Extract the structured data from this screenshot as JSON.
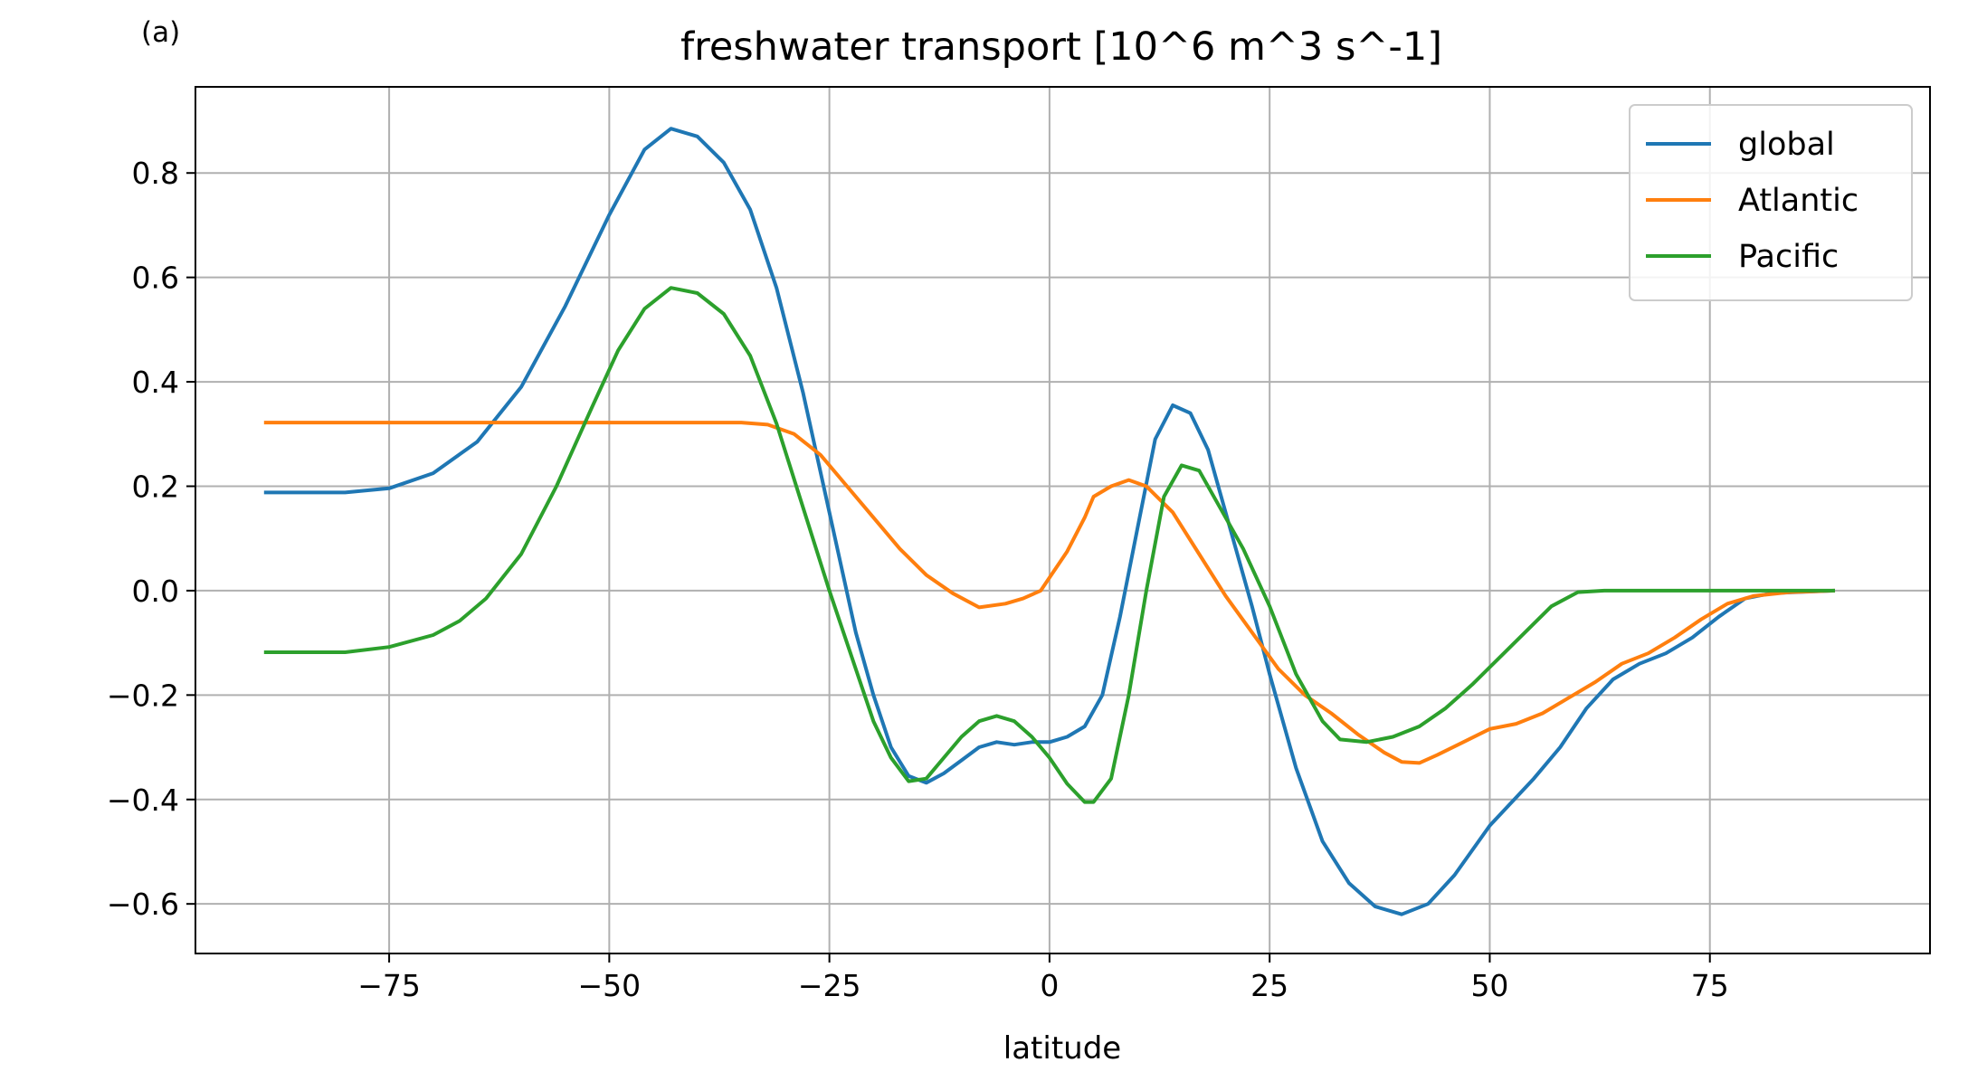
{
  "panel_label": "(a)",
  "chart_data": {
    "type": "line",
    "title": "freshwater transport [10^6 m^3 s^-1]",
    "xlabel": "latitude",
    "ylabel": "",
    "xlim": [
      -97,
      100
    ],
    "ylim": [
      -0.695,
      0.965
    ],
    "x_ticks": [
      -75,
      -50,
      -25,
      0,
      25,
      50,
      75
    ],
    "x_tick_labels": [
      "−75",
      "−50",
      "−25",
      "0",
      "25",
      "50",
      "75"
    ],
    "y_ticks": [
      -0.6,
      -0.4,
      -0.2,
      0.0,
      0.2,
      0.4,
      0.6,
      0.8
    ],
    "y_tick_labels": [
      "−0.6",
      "−0.4",
      "−0.2",
      "0.0",
      "0.2",
      "0.4",
      "0.6",
      "0.8"
    ],
    "grid": true,
    "legend_position": "top-right",
    "series": [
      {
        "name": "global",
        "color": "#1f77b4",
        "points": [
          [
            -89,
            0.188
          ],
          [
            -80,
            0.188
          ],
          [
            -75,
            0.196
          ],
          [
            -70,
            0.225
          ],
          [
            -65,
            0.285
          ],
          [
            -60,
            0.39
          ],
          [
            -55,
            0.545
          ],
          [
            -50,
            0.72
          ],
          [
            -46,
            0.845
          ],
          [
            -43,
            0.885
          ],
          [
            -40,
            0.87
          ],
          [
            -37,
            0.82
          ],
          [
            -34,
            0.73
          ],
          [
            -31,
            0.58
          ],
          [
            -28,
            0.38
          ],
          [
            -25,
            0.15
          ],
          [
            -22,
            -0.08
          ],
          [
            -20,
            -0.2
          ],
          [
            -18,
            -0.3
          ],
          [
            -16,
            -0.355
          ],
          [
            -14,
            -0.368
          ],
          [
            -12,
            -0.35
          ],
          [
            -10,
            -0.325
          ],
          [
            -8,
            -0.3
          ],
          [
            -6,
            -0.29
          ],
          [
            -4,
            -0.295
          ],
          [
            -2,
            -0.29
          ],
          [
            0,
            -0.29
          ],
          [
            2,
            -0.28
          ],
          [
            4,
            -0.26
          ],
          [
            6,
            -0.2
          ],
          [
            8,
            -0.05
          ],
          [
            10,
            0.12
          ],
          [
            12,
            0.29
          ],
          [
            14,
            0.355
          ],
          [
            16,
            0.34
          ],
          [
            18,
            0.27
          ],
          [
            20,
            0.15
          ],
          [
            23,
            -0.03
          ],
          [
            25,
            -0.16
          ],
          [
            28,
            -0.34
          ],
          [
            31,
            -0.48
          ],
          [
            34,
            -0.56
          ],
          [
            37,
            -0.605
          ],
          [
            40,
            -0.62
          ],
          [
            43,
            -0.6
          ],
          [
            46,
            -0.545
          ],
          [
            50,
            -0.45
          ],
          [
            55,
            -0.36
          ],
          [
            58,
            -0.3
          ],
          [
            61,
            -0.225
          ],
          [
            64,
            -0.17
          ],
          [
            67,
            -0.14
          ],
          [
            70,
            -0.12
          ],
          [
            73,
            -0.09
          ],
          [
            76,
            -0.05
          ],
          [
            79,
            -0.015
          ],
          [
            82,
            -0.005
          ],
          [
            86,
            -0.002
          ],
          [
            89,
            0
          ]
        ]
      },
      {
        "name": "Atlantic",
        "color": "#ff7f0e",
        "points": [
          [
            -89,
            0.322
          ],
          [
            -35,
            0.322
          ],
          [
            -32,
            0.318
          ],
          [
            -29,
            0.3
          ],
          [
            -26,
            0.26
          ],
          [
            -23,
            0.2
          ],
          [
            -20,
            0.14
          ],
          [
            -17,
            0.08
          ],
          [
            -14,
            0.03
          ],
          [
            -11,
            -0.005
          ],
          [
            -8,
            -0.032
          ],
          [
            -5,
            -0.025
          ],
          [
            -3,
            -0.015
          ],
          [
            -1,
            0.0
          ],
          [
            0,
            0.025
          ],
          [
            2,
            0.075
          ],
          [
            4,
            0.14
          ],
          [
            5,
            0.18
          ],
          [
            7,
            0.2
          ],
          [
            9,
            0.212
          ],
          [
            11,
            0.2
          ],
          [
            14,
            0.15
          ],
          [
            17,
            0.07
          ],
          [
            20,
            -0.01
          ],
          [
            23,
            -0.08
          ],
          [
            26,
            -0.15
          ],
          [
            29,
            -0.2
          ],
          [
            32,
            -0.235
          ],
          [
            35,
            -0.275
          ],
          [
            38,
            -0.31
          ],
          [
            40,
            -0.328
          ],
          [
            42,
            -0.33
          ],
          [
            44,
            -0.315
          ],
          [
            47,
            -0.29
          ],
          [
            50,
            -0.265
          ],
          [
            53,
            -0.255
          ],
          [
            56,
            -0.235
          ],
          [
            59,
            -0.205
          ],
          [
            62,
            -0.175
          ],
          [
            65,
            -0.14
          ],
          [
            68,
            -0.12
          ],
          [
            71,
            -0.09
          ],
          [
            74,
            -0.055
          ],
          [
            77,
            -0.025
          ],
          [
            80,
            -0.01
          ],
          [
            84,
            -0.003
          ],
          [
            89,
            0
          ]
        ]
      },
      {
        "name": "Pacific",
        "color": "#2ca02c",
        "points": [
          [
            -89,
            -0.118
          ],
          [
            -80,
            -0.118
          ],
          [
            -75,
            -0.108
          ],
          [
            -70,
            -0.085
          ],
          [
            -67,
            -0.058
          ],
          [
            -64,
            -0.015
          ],
          [
            -60,
            0.07
          ],
          [
            -56,
            0.2
          ],
          [
            -52,
            0.35
          ],
          [
            -49,
            0.46
          ],
          [
            -46,
            0.54
          ],
          [
            -43,
            0.58
          ],
          [
            -40,
            0.57
          ],
          [
            -37,
            0.53
          ],
          [
            -34,
            0.45
          ],
          [
            -31,
            0.32
          ],
          [
            -28,
            0.16
          ],
          [
            -25,
            0.0
          ],
          [
            -22,
            -0.15
          ],
          [
            -20,
            -0.25
          ],
          [
            -18,
            -0.32
          ],
          [
            -16,
            -0.365
          ],
          [
            -14,
            -0.36
          ],
          [
            -12,
            -0.32
          ],
          [
            -10,
            -0.28
          ],
          [
            -8,
            -0.25
          ],
          [
            -6,
            -0.24
          ],
          [
            -4,
            -0.25
          ],
          [
            -2,
            -0.28
          ],
          [
            0,
            -0.32
          ],
          [
            2,
            -0.37
          ],
          [
            4,
            -0.405
          ],
          [
            5,
            -0.405
          ],
          [
            7,
            -0.36
          ],
          [
            9,
            -0.2
          ],
          [
            11,
            0.0
          ],
          [
            13,
            0.18
          ],
          [
            15,
            0.24
          ],
          [
            17,
            0.23
          ],
          [
            19,
            0.17
          ],
          [
            22,
            0.08
          ],
          [
            25,
            -0.03
          ],
          [
            28,
            -0.16
          ],
          [
            31,
            -0.25
          ],
          [
            33,
            -0.285
          ],
          [
            36,
            -0.29
          ],
          [
            39,
            -0.28
          ],
          [
            42,
            -0.26
          ],
          [
            45,
            -0.225
          ],
          [
            48,
            -0.18
          ],
          [
            51,
            -0.13
          ],
          [
            54,
            -0.08
          ],
          [
            57,
            -0.03
          ],
          [
            60,
            -0.003
          ],
          [
            63,
            0
          ],
          [
            89,
            0
          ]
        ]
      }
    ]
  }
}
